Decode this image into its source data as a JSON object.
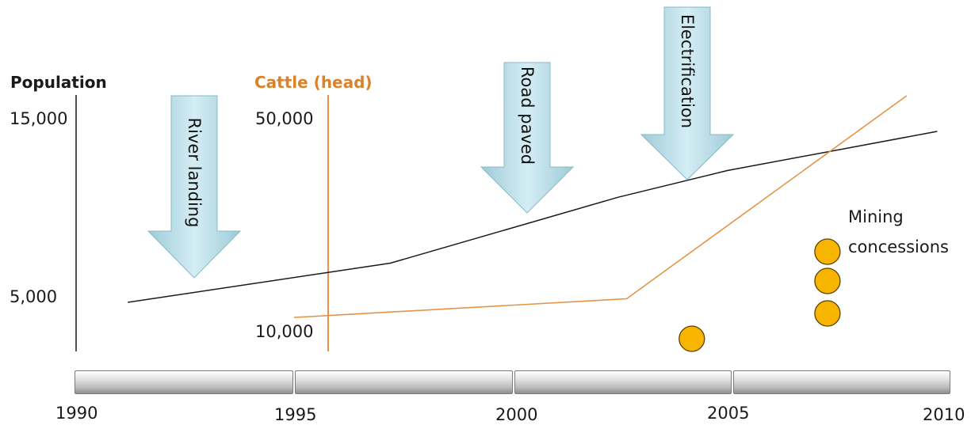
{
  "population_axis": {
    "title": "Population",
    "ticks": [
      "15,000",
      "5,000"
    ]
  },
  "cattle_axis": {
    "title": "Cattle (head)",
    "ticks": [
      "50,000",
      "10,000"
    ]
  },
  "timeline": {
    "years": [
      "1990",
      "1995",
      "2000",
      "2005",
      "2010"
    ]
  },
  "events": [
    {
      "label": "River landing",
      "year": 1992.5
    },
    {
      "label": "Road paved",
      "year": 2000.5
    },
    {
      "label": "Electrification",
      "year": 2003.8
    }
  ],
  "mining": {
    "label_line1": "Mining",
    "label_line2": "concessions"
  },
  "colors": {
    "population": "#1a1a1a",
    "cattle": "#e3944a",
    "cattle_label": "#d9822b",
    "arrow": "#b7dde8",
    "mining": "#f7b500"
  },
  "chart_data": {
    "type": "line",
    "x_range": [
      1990,
      2010
    ],
    "series": [
      {
        "axis": "Population",
        "x": [
          1991.2,
          1997.2,
          2002.4,
          2004.9,
          2009.7
        ],
        "y": [
          4600,
          6800,
          10500,
          12000,
          14200
        ]
      },
      {
        "axis": "Cattle (head)",
        "x": [
          1995.0,
          2002.6,
          2009.0
        ],
        "y": [
          12500,
          16000,
          54000
        ]
      }
    ],
    "mining_concessions": [
      {
        "year": 2004.0
      },
      {
        "year": 2007.1
      },
      {
        "year": 2007.1
      },
      {
        "year": 2007.1
      }
    ]
  }
}
